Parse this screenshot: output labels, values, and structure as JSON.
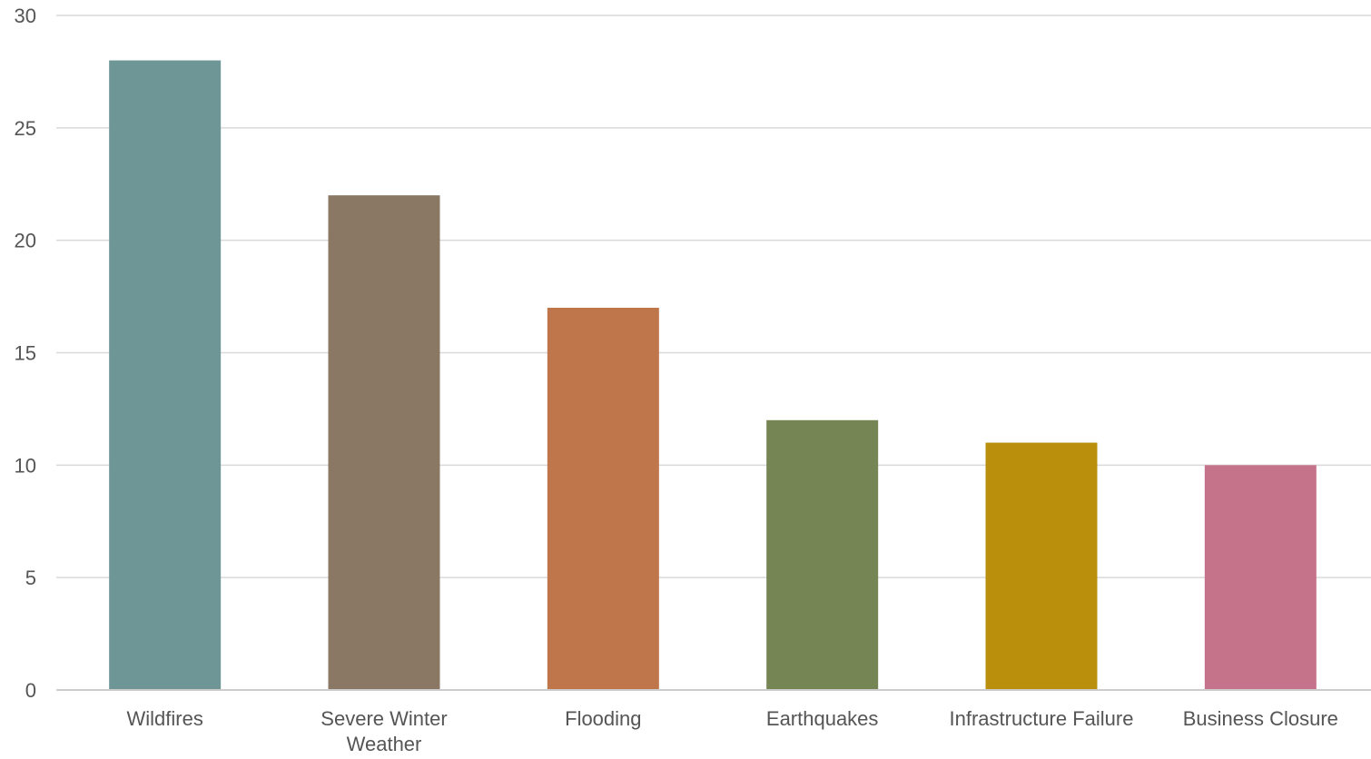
{
  "chart_data": {
    "type": "bar",
    "title": "",
    "xlabel": "",
    "ylabel": "",
    "categories": [
      [
        "Wildfires"
      ],
      [
        "Severe Winter",
        "Weather"
      ],
      [
        "Flooding"
      ],
      [
        "Earthquakes"
      ],
      [
        "Infrastructure Failure"
      ],
      [
        "Business Closure"
      ]
    ],
    "values": [
      28,
      22,
      17,
      12,
      11,
      10
    ],
    "colors": [
      "#6e9696",
      "#8a7865",
      "#bf764b",
      "#758654",
      "#ba8f0c",
      "#c5728b"
    ],
    "ylim": [
      0,
      30
    ],
    "yticks": [
      0,
      5,
      10,
      15,
      20,
      25,
      30
    ],
    "grid": true,
    "gridColor": "#d9d9d9",
    "axisColor": "#cccccc",
    "textColor": "#555555"
  }
}
